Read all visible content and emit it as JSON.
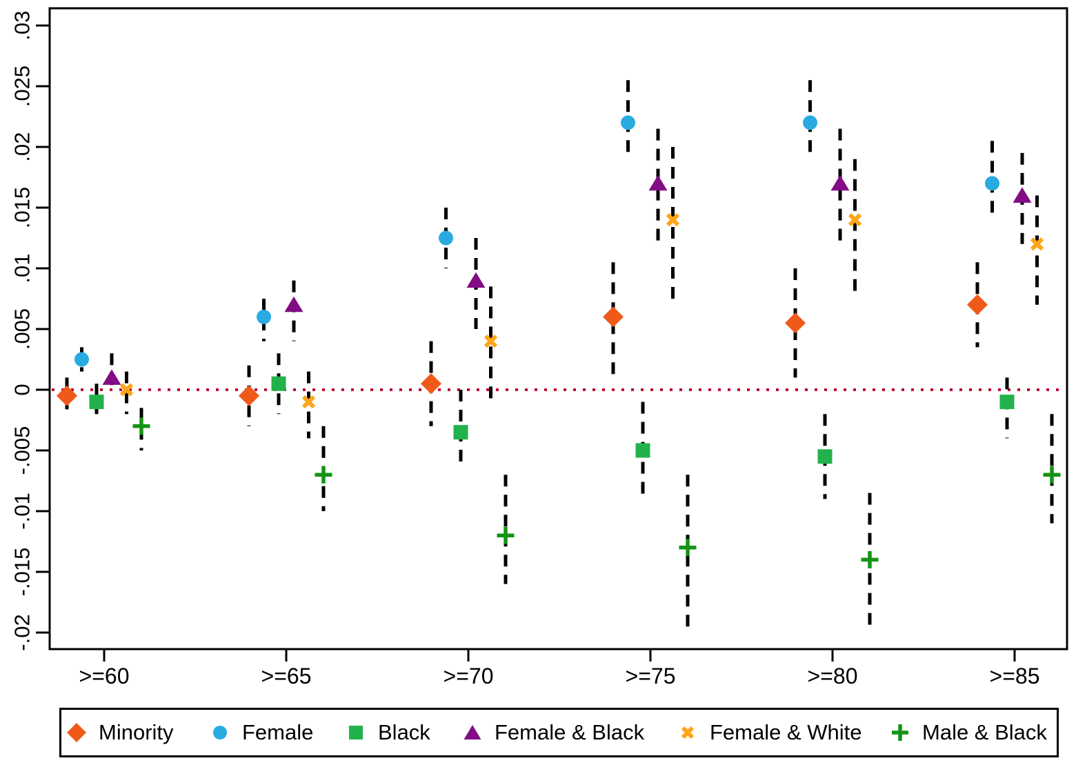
{
  "chart_data": {
    "type": "scatter",
    "title": "",
    "xlabel": "",
    "ylabel": "",
    "grid": false,
    "legend_position": "bottom",
    "categories": [
      ">=60",
      ">=65",
      ">=70",
      ">=75",
      ">=80",
      ">=85"
    ],
    "ylim": [
      -0.021,
      0.031
    ],
    "yticks": [
      {
        "value": 0.03,
        "label": ".03"
      },
      {
        "value": 0.025,
        "label": ".025"
      },
      {
        "value": 0.02,
        "label": ".02"
      },
      {
        "value": 0.015,
        "label": ".015"
      },
      {
        "value": 0.01,
        "label": ".01"
      },
      {
        "value": 0.005,
        "label": ".005"
      },
      {
        "value": 0,
        "label": "0"
      },
      {
        "value": -0.005,
        "label": "-.005"
      },
      {
        "value": -0.01,
        "label": "-.01"
      },
      {
        "value": -0.015,
        "label": "-.015"
      },
      {
        "value": -0.02,
        "label": "-.02"
      }
    ],
    "zero_line": {
      "value": 0,
      "color": "#C10534",
      "style": "dotted"
    },
    "error_bars": {
      "color": "#000000",
      "style": "dashed"
    },
    "series": [
      {
        "name": "Minority",
        "marker": "diamond",
        "color": "#F05A19",
        "points": [
          {
            "est": -0.0005,
            "lo": -0.002,
            "hi": 0.001
          },
          {
            "est": -0.0005,
            "lo": -0.003,
            "hi": 0.002
          },
          {
            "est": 0.0005,
            "lo": -0.003,
            "hi": 0.004
          },
          {
            "est": 0.006,
            "lo": 0.001,
            "hi": 0.0105
          },
          {
            "est": 0.0055,
            "lo": 0.001,
            "hi": 0.01
          },
          {
            "est": 0.007,
            "lo": 0.0035,
            "hi": 0.0105
          }
        ]
      },
      {
        "name": "Female",
        "marker": "circle",
        "color": "#29ABE2",
        "points": [
          {
            "est": 0.0025,
            "lo": 0.0015,
            "hi": 0.0035
          },
          {
            "est": 0.006,
            "lo": 0.004,
            "hi": 0.0075
          },
          {
            "est": 0.0125,
            "lo": 0.01,
            "hi": 0.015
          },
          {
            "est": 0.022,
            "lo": 0.019,
            "hi": 0.0255
          },
          {
            "est": 0.022,
            "lo": 0.019,
            "hi": 0.0255
          },
          {
            "est": 0.017,
            "lo": 0.014,
            "hi": 0.0205
          }
        ]
      },
      {
        "name": "Black",
        "marker": "square",
        "color": "#22B24C",
        "points": [
          {
            "est": -0.001,
            "lo": -0.002,
            "hi": 0.0005
          },
          {
            "est": 0.0005,
            "lo": -0.002,
            "hi": 0.003
          },
          {
            "est": -0.0035,
            "lo": -0.0065,
            "hi": 0.0
          },
          {
            "est": -0.005,
            "lo": -0.009,
            "hi": -0.001
          },
          {
            "est": -0.0055,
            "lo": -0.009,
            "hi": -0.002
          },
          {
            "est": -0.001,
            "lo": -0.004,
            "hi": 0.001
          }
        ]
      },
      {
        "name": "Female & Black",
        "marker": "triangle",
        "color": "#820C84",
        "points": [
          {
            "est": 0.001,
            "lo": 0.0,
            "hi": 0.003
          },
          {
            "est": 0.007,
            "lo": 0.004,
            "hi": 0.009
          },
          {
            "est": 0.009,
            "lo": 0.005,
            "hi": 0.0125
          },
          {
            "est": 0.017,
            "lo": 0.012,
            "hi": 0.0215
          },
          {
            "est": 0.017,
            "lo": 0.012,
            "hi": 0.0215
          },
          {
            "est": 0.016,
            "lo": 0.012,
            "hi": 0.0195
          }
        ]
      },
      {
        "name": "Female & White",
        "marker": "x",
        "color": "#FFA518",
        "points": [
          {
            "est": 0.0,
            "lo": -0.002,
            "hi": 0.0015
          },
          {
            "est": -0.001,
            "lo": -0.004,
            "hi": 0.0015
          },
          {
            "est": 0.004,
            "lo": -0.001,
            "hi": 0.0085
          },
          {
            "est": 0.014,
            "lo": 0.007,
            "hi": 0.02
          },
          {
            "est": 0.014,
            "lo": 0.008,
            "hi": 0.019
          },
          {
            "est": 0.012,
            "lo": 0.007,
            "hi": 0.016
          }
        ]
      },
      {
        "name": "Male & Black",
        "marker": "plus",
        "color": "#149414",
        "points": [
          {
            "est": -0.003,
            "lo": -0.005,
            "hi": -0.0015
          },
          {
            "est": -0.007,
            "lo": -0.01,
            "hi": -0.003
          },
          {
            "est": -0.012,
            "lo": -0.016,
            "hi": -0.007
          },
          {
            "est": -0.013,
            "lo": -0.02,
            "hi": -0.007
          },
          {
            "est": -0.014,
            "lo": -0.02,
            "hi": -0.0085
          },
          {
            "est": -0.007,
            "lo": -0.011,
            "hi": -0.002
          }
        ]
      }
    ]
  }
}
